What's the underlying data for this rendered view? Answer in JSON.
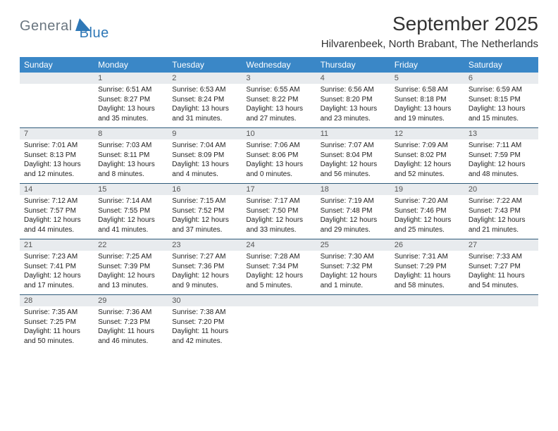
{
  "logo": {
    "text1": "General",
    "text2": "Blue"
  },
  "title": "September 2025",
  "location": "Hilvarenbeek, North Brabant, The Netherlands",
  "colors": {
    "header_bg": "#3a87c7",
    "header_text": "#ffffff",
    "daynum_bg": "#e8ebee",
    "daynum_text": "#555555",
    "border": "#2f5a7a",
    "logo_gray": "#6a7680",
    "logo_blue": "#2f78b7",
    "body_text": "#222222",
    "background": "#ffffff"
  },
  "day_labels": [
    "Sunday",
    "Monday",
    "Tuesday",
    "Wednesday",
    "Thursday",
    "Friday",
    "Saturday"
  ],
  "weeks": [
    [
      {
        "n": "",
        "sunrise": "",
        "sunset": "",
        "daylight": ""
      },
      {
        "n": "1",
        "sunrise": "Sunrise: 6:51 AM",
        "sunset": "Sunset: 8:27 PM",
        "daylight": "Daylight: 13 hours and 35 minutes."
      },
      {
        "n": "2",
        "sunrise": "Sunrise: 6:53 AM",
        "sunset": "Sunset: 8:24 PM",
        "daylight": "Daylight: 13 hours and 31 minutes."
      },
      {
        "n": "3",
        "sunrise": "Sunrise: 6:55 AM",
        "sunset": "Sunset: 8:22 PM",
        "daylight": "Daylight: 13 hours and 27 minutes."
      },
      {
        "n": "4",
        "sunrise": "Sunrise: 6:56 AM",
        "sunset": "Sunset: 8:20 PM",
        "daylight": "Daylight: 13 hours and 23 minutes."
      },
      {
        "n": "5",
        "sunrise": "Sunrise: 6:58 AM",
        "sunset": "Sunset: 8:18 PM",
        "daylight": "Daylight: 13 hours and 19 minutes."
      },
      {
        "n": "6",
        "sunrise": "Sunrise: 6:59 AM",
        "sunset": "Sunset: 8:15 PM",
        "daylight": "Daylight: 13 hours and 15 minutes."
      }
    ],
    [
      {
        "n": "7",
        "sunrise": "Sunrise: 7:01 AM",
        "sunset": "Sunset: 8:13 PM",
        "daylight": "Daylight: 13 hours and 12 minutes."
      },
      {
        "n": "8",
        "sunrise": "Sunrise: 7:03 AM",
        "sunset": "Sunset: 8:11 PM",
        "daylight": "Daylight: 13 hours and 8 minutes."
      },
      {
        "n": "9",
        "sunrise": "Sunrise: 7:04 AM",
        "sunset": "Sunset: 8:09 PM",
        "daylight": "Daylight: 13 hours and 4 minutes."
      },
      {
        "n": "10",
        "sunrise": "Sunrise: 7:06 AM",
        "sunset": "Sunset: 8:06 PM",
        "daylight": "Daylight: 13 hours and 0 minutes."
      },
      {
        "n": "11",
        "sunrise": "Sunrise: 7:07 AM",
        "sunset": "Sunset: 8:04 PM",
        "daylight": "Daylight: 12 hours and 56 minutes."
      },
      {
        "n": "12",
        "sunrise": "Sunrise: 7:09 AM",
        "sunset": "Sunset: 8:02 PM",
        "daylight": "Daylight: 12 hours and 52 minutes."
      },
      {
        "n": "13",
        "sunrise": "Sunrise: 7:11 AM",
        "sunset": "Sunset: 7:59 PM",
        "daylight": "Daylight: 12 hours and 48 minutes."
      }
    ],
    [
      {
        "n": "14",
        "sunrise": "Sunrise: 7:12 AM",
        "sunset": "Sunset: 7:57 PM",
        "daylight": "Daylight: 12 hours and 44 minutes."
      },
      {
        "n": "15",
        "sunrise": "Sunrise: 7:14 AM",
        "sunset": "Sunset: 7:55 PM",
        "daylight": "Daylight: 12 hours and 41 minutes."
      },
      {
        "n": "16",
        "sunrise": "Sunrise: 7:15 AM",
        "sunset": "Sunset: 7:52 PM",
        "daylight": "Daylight: 12 hours and 37 minutes."
      },
      {
        "n": "17",
        "sunrise": "Sunrise: 7:17 AM",
        "sunset": "Sunset: 7:50 PM",
        "daylight": "Daylight: 12 hours and 33 minutes."
      },
      {
        "n": "18",
        "sunrise": "Sunrise: 7:19 AM",
        "sunset": "Sunset: 7:48 PM",
        "daylight": "Daylight: 12 hours and 29 minutes."
      },
      {
        "n": "19",
        "sunrise": "Sunrise: 7:20 AM",
        "sunset": "Sunset: 7:46 PM",
        "daylight": "Daylight: 12 hours and 25 minutes."
      },
      {
        "n": "20",
        "sunrise": "Sunrise: 7:22 AM",
        "sunset": "Sunset: 7:43 PM",
        "daylight": "Daylight: 12 hours and 21 minutes."
      }
    ],
    [
      {
        "n": "21",
        "sunrise": "Sunrise: 7:23 AM",
        "sunset": "Sunset: 7:41 PM",
        "daylight": "Daylight: 12 hours and 17 minutes."
      },
      {
        "n": "22",
        "sunrise": "Sunrise: 7:25 AM",
        "sunset": "Sunset: 7:39 PM",
        "daylight": "Daylight: 12 hours and 13 minutes."
      },
      {
        "n": "23",
        "sunrise": "Sunrise: 7:27 AM",
        "sunset": "Sunset: 7:36 PM",
        "daylight": "Daylight: 12 hours and 9 minutes."
      },
      {
        "n": "24",
        "sunrise": "Sunrise: 7:28 AM",
        "sunset": "Sunset: 7:34 PM",
        "daylight": "Daylight: 12 hours and 5 minutes."
      },
      {
        "n": "25",
        "sunrise": "Sunrise: 7:30 AM",
        "sunset": "Sunset: 7:32 PM",
        "daylight": "Daylight: 12 hours and 1 minute."
      },
      {
        "n": "26",
        "sunrise": "Sunrise: 7:31 AM",
        "sunset": "Sunset: 7:29 PM",
        "daylight": "Daylight: 11 hours and 58 minutes."
      },
      {
        "n": "27",
        "sunrise": "Sunrise: 7:33 AM",
        "sunset": "Sunset: 7:27 PM",
        "daylight": "Daylight: 11 hours and 54 minutes."
      }
    ],
    [
      {
        "n": "28",
        "sunrise": "Sunrise: 7:35 AM",
        "sunset": "Sunset: 7:25 PM",
        "daylight": "Daylight: 11 hours and 50 minutes."
      },
      {
        "n": "29",
        "sunrise": "Sunrise: 7:36 AM",
        "sunset": "Sunset: 7:23 PM",
        "daylight": "Daylight: 11 hours and 46 minutes."
      },
      {
        "n": "30",
        "sunrise": "Sunrise: 7:38 AM",
        "sunset": "Sunset: 7:20 PM",
        "daylight": "Daylight: 11 hours and 42 minutes."
      },
      {
        "n": "",
        "sunrise": "",
        "sunset": "",
        "daylight": ""
      },
      {
        "n": "",
        "sunrise": "",
        "sunset": "",
        "daylight": ""
      },
      {
        "n": "",
        "sunrise": "",
        "sunset": "",
        "daylight": ""
      },
      {
        "n": "",
        "sunrise": "",
        "sunset": "",
        "daylight": ""
      }
    ]
  ]
}
